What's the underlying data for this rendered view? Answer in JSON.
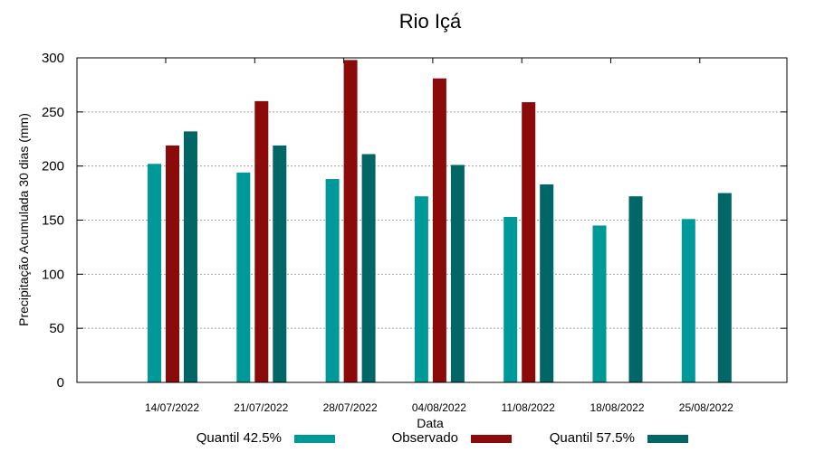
{
  "chart_data": {
    "type": "bar",
    "title": "Rio Içá",
    "xlabel": "Data",
    "ylabel": "Precipitação Acumulada 30 dias (mm)",
    "ylim": [
      0,
      300
    ],
    "yticks": [
      0,
      50,
      100,
      150,
      200,
      250,
      300
    ],
    "grid": true,
    "legend_position": "bottom",
    "categories": [
      "14/07/2022",
      "21/07/2022",
      "28/07/2022",
      "04/08/2022",
      "11/08/2022",
      "18/08/2022",
      "25/08/2022"
    ],
    "series": [
      {
        "name": "Quantil 42.5%",
        "color": "#009999",
        "values": [
          202,
          194,
          188,
          172,
          153,
          145,
          151
        ]
      },
      {
        "name": "Observado",
        "color": "#8b0a0a",
        "values": [
          219,
          260,
          298,
          281,
          259,
          null,
          null
        ]
      },
      {
        "name": "Quantil 57.5%",
        "color": "#006666",
        "values": [
          232,
          219,
          211,
          201,
          183,
          172,
          175
        ]
      }
    ]
  }
}
